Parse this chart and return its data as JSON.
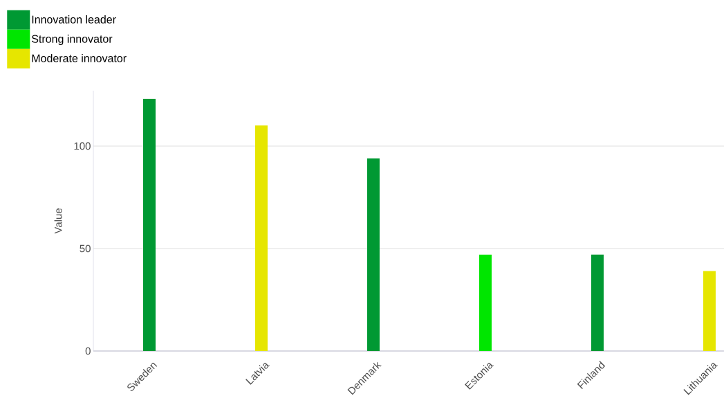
{
  "chart_data": {
    "type": "bar",
    "categories": [
      "Sweden",
      "Latvia",
      "Denmark",
      "Estonia",
      "Finland",
      "Lithuania"
    ],
    "series": [
      {
        "name": "Innovation leader",
        "color": "#009933",
        "values": [
          123,
          null,
          94,
          null,
          47,
          null
        ]
      },
      {
        "name": "Strong innovator",
        "color": "#00e600",
        "values": [
          null,
          null,
          null,
          47,
          null,
          null
        ]
      },
      {
        "name": "Moderate innovator",
        "color": "#e6e600",
        "values": [
          null,
          110,
          null,
          null,
          null,
          39
        ]
      }
    ],
    "ylabel": "Value",
    "ylim": [
      0,
      127
    ],
    "yticks": [
      0,
      50,
      100
    ],
    "grid": "y",
    "legend": "top left"
  }
}
